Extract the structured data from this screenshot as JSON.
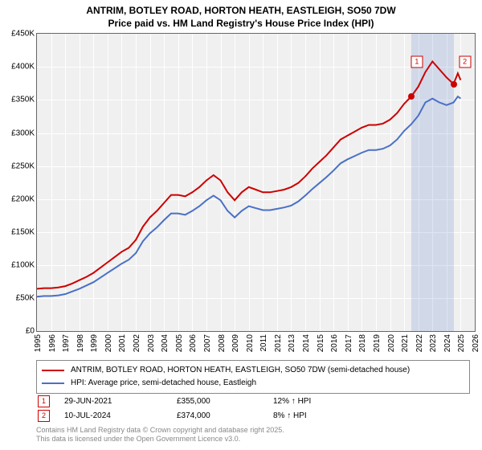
{
  "title": {
    "line1": "ANTRIM, BOTLEY ROAD, HORTON HEATH, EASTLEIGH, SO50 7DW",
    "line2": "Price paid vs. HM Land Registry's House Price Index (HPI)"
  },
  "chart": {
    "type": "line",
    "background_color": "#f0f0f0",
    "grid_color": "#ffffff",
    "border_color": "#666666",
    "y_axis": {
      "min": 0,
      "max": 450000,
      "step": 50000,
      "tick_labels": [
        "£0",
        "£50K",
        "£100K",
        "£150K",
        "£200K",
        "£250K",
        "£300K",
        "£350K",
        "£400K",
        "£450K"
      ]
    },
    "x_axis": {
      "min": 1995,
      "max": 2026,
      "step": 1,
      "tick_labels": [
        "1995",
        "1996",
        "1997",
        "1998",
        "1999",
        "2000",
        "2001",
        "2002",
        "2003",
        "2004",
        "2005",
        "2006",
        "2007",
        "2008",
        "2009",
        "2010",
        "2011",
        "2012",
        "2013",
        "2014",
        "2015",
        "2016",
        "2017",
        "2018",
        "2019",
        "2020",
        "2021",
        "2022",
        "2023",
        "2024",
        "2025",
        "2026"
      ]
    },
    "highlight": {
      "x_start": 2021.5,
      "x_end": 2024.5,
      "color": "rgba(74,112,198,0.18)"
    },
    "series": [
      {
        "id": "price_paid",
        "label": "ANTRIM, BOTLEY ROAD, HORTON HEATH, EASTLEIGH, SO50 7DW (semi-detached house)",
        "color": "#cc0000",
        "line_width": 2,
        "xy": [
          [
            1995,
            64000
          ],
          [
            1995.5,
            65000
          ],
          [
            1996,
            65000
          ],
          [
            1996.5,
            66000
          ],
          [
            1997,
            68000
          ],
          [
            1997.5,
            72000
          ],
          [
            1998,
            77000
          ],
          [
            1998.5,
            82000
          ],
          [
            1999,
            88000
          ],
          [
            1999.5,
            96000
          ],
          [
            2000,
            104000
          ],
          [
            2000.5,
            112000
          ],
          [
            2001,
            120000
          ],
          [
            2001.5,
            126000
          ],
          [
            2002,
            138000
          ],
          [
            2002.5,
            158000
          ],
          [
            2003,
            172000
          ],
          [
            2003.5,
            182000
          ],
          [
            2004,
            194000
          ],
          [
            2004.5,
            206000
          ],
          [
            2005,
            206000
          ],
          [
            2005.5,
            204000
          ],
          [
            2006,
            210000
          ],
          [
            2006.5,
            218000
          ],
          [
            2007,
            228000
          ],
          [
            2007.5,
            236000
          ],
          [
            2008,
            228000
          ],
          [
            2008.5,
            210000
          ],
          [
            2009,
            198000
          ],
          [
            2009.5,
            210000
          ],
          [
            2010,
            218000
          ],
          [
            2010.5,
            214000
          ],
          [
            2011,
            210000
          ],
          [
            2011.5,
            210000
          ],
          [
            2012,
            212000
          ],
          [
            2012.5,
            214000
          ],
          [
            2013,
            218000
          ],
          [
            2013.5,
            224000
          ],
          [
            2014,
            234000
          ],
          [
            2014.5,
            246000
          ],
          [
            2015,
            256000
          ],
          [
            2015.5,
            266000
          ],
          [
            2016,
            278000
          ],
          [
            2016.5,
            290000
          ],
          [
            2017,
            296000
          ],
          [
            2017.5,
            302000
          ],
          [
            2018,
            308000
          ],
          [
            2018.5,
            312000
          ],
          [
            2019,
            312000
          ],
          [
            2019.5,
            314000
          ],
          [
            2020,
            320000
          ],
          [
            2020.5,
            330000
          ],
          [
            2021,
            344000
          ],
          [
            2021.5,
            355000
          ],
          [
            2022,
            370000
          ],
          [
            2022.5,
            392000
          ],
          [
            2023,
            408000
          ],
          [
            2023.5,
            396000
          ],
          [
            2024,
            384000
          ],
          [
            2024.5,
            374000
          ],
          [
            2024.8,
            390000
          ],
          [
            2025,
            380000
          ]
        ]
      },
      {
        "id": "hpi",
        "label": "HPI: Average price, semi-detached house, Eastleigh",
        "color": "#4a70c6",
        "line_width": 2,
        "xy": [
          [
            1995,
            52000
          ],
          [
            1995.5,
            53000
          ],
          [
            1996,
            53000
          ],
          [
            1996.5,
            54000
          ],
          [
            1997,
            56000
          ],
          [
            1997.5,
            60000
          ],
          [
            1998,
            64000
          ],
          [
            1998.5,
            69000
          ],
          [
            1999,
            74000
          ],
          [
            1999.5,
            81000
          ],
          [
            2000,
            88000
          ],
          [
            2000.5,
            95000
          ],
          [
            2001,
            102000
          ],
          [
            2001.5,
            108000
          ],
          [
            2002,
            118000
          ],
          [
            2002.5,
            136000
          ],
          [
            2003,
            148000
          ],
          [
            2003.5,
            157000
          ],
          [
            2004,
            168000
          ],
          [
            2004.5,
            178000
          ],
          [
            2005,
            178000
          ],
          [
            2005.5,
            176000
          ],
          [
            2006,
            182000
          ],
          [
            2006.5,
            189000
          ],
          [
            2007,
            198000
          ],
          [
            2007.5,
            205000
          ],
          [
            2008,
            198000
          ],
          [
            2008.5,
            182000
          ],
          [
            2009,
            172000
          ],
          [
            2009.5,
            182000
          ],
          [
            2010,
            189000
          ],
          [
            2010.5,
            186000
          ],
          [
            2011,
            183000
          ],
          [
            2011.5,
            183000
          ],
          [
            2012,
            185000
          ],
          [
            2012.5,
            187000
          ],
          [
            2013,
            190000
          ],
          [
            2013.5,
            196000
          ],
          [
            2014,
            205000
          ],
          [
            2014.5,
            215000
          ],
          [
            2015,
            224000
          ],
          [
            2015.5,
            233000
          ],
          [
            2016,
            243000
          ],
          [
            2016.5,
            254000
          ],
          [
            2017,
            260000
          ],
          [
            2017.5,
            265000
          ],
          [
            2018,
            270000
          ],
          [
            2018.5,
            274000
          ],
          [
            2019,
            274000
          ],
          [
            2019.5,
            276000
          ],
          [
            2020,
            281000
          ],
          [
            2020.5,
            290000
          ],
          [
            2021,
            303000
          ],
          [
            2021.5,
            313000
          ],
          [
            2022,
            326000
          ],
          [
            2022.5,
            346000
          ],
          [
            2023,
            352000
          ],
          [
            2023.5,
            346000
          ],
          [
            2024,
            342000
          ],
          [
            2024.5,
            346000
          ],
          [
            2024.8,
            355000
          ],
          [
            2025,
            352000
          ]
        ]
      }
    ],
    "markers": [
      {
        "n": "1",
        "x": 2021.5,
        "y": 355000,
        "badge_x": 2021.9,
        "badge_y": 408000,
        "dot_color": "#cc0000",
        "border_color": "#cc0000"
      },
      {
        "n": "2",
        "x": 2024.52,
        "y": 374000,
        "badge_x": 2025.3,
        "badge_y": 408000,
        "dot_color": "#cc0000",
        "border_color": "#cc0000"
      }
    ]
  },
  "legend": {
    "rows": [
      {
        "color": "#cc0000",
        "label": "ANTRIM, BOTLEY ROAD, HORTON HEATH, EASTLEIGH, SO50 7DW (semi-detached house)"
      },
      {
        "color": "#4a70c6",
        "label": "HPI: Average price, semi-detached house, Eastleigh"
      }
    ]
  },
  "marker_table": [
    {
      "n": "1",
      "border_color": "#cc0000",
      "date": "29-JUN-2021",
      "price": "£355,000",
      "pct": "12% ↑ HPI"
    },
    {
      "n": "2",
      "border_color": "#cc0000",
      "date": "10-JUL-2024",
      "price": "£374,000",
      "pct": "8% ↑ HPI"
    }
  ],
  "copyright": {
    "line1": "Contains HM Land Registry data © Crown copyright and database right 2025.",
    "line2": "This data is licensed under the Open Government Licence v3.0."
  }
}
